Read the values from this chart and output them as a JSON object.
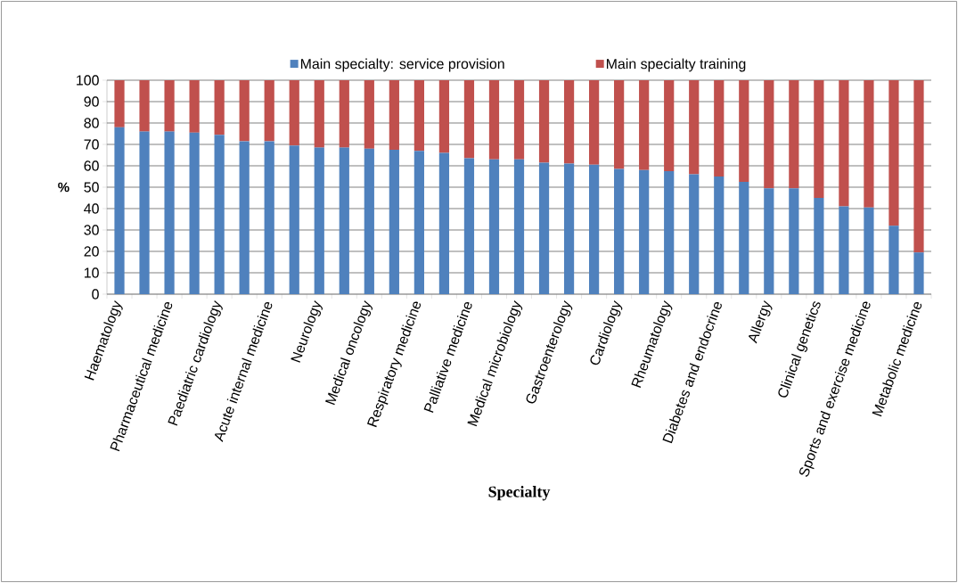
{
  "chart_data": {
    "type": "bar",
    "stacked": true,
    "xlabel": "Specialty",
    "ylabel": "%",
    "categories": [
      "Haematology",
      null,
      "Pharmaceutical medicine",
      null,
      "Paediatric cardiology",
      null,
      "Acute internal medicine",
      null,
      "Neurology",
      null,
      "Medical oncology",
      null,
      "Respiratory medicine",
      null,
      "Palliative medicine",
      null,
      "Medical microbiology",
      null,
      "Gastroenterology",
      null,
      "Cardiology",
      null,
      "Rheumatology",
      null,
      "Diabetes and endocrine",
      null,
      "Allergy",
      null,
      "Clinical genetics",
      null,
      "Sports and exercise medicine",
      null,
      "Metabolic medicine"
    ],
    "series": [
      {
        "name": "Main specialty: service provision",
        "color": "#4f81bd",
        "values": [
          78,
          76,
          76,
          75.5,
          74.5,
          71.5,
          71.5,
          69.5,
          68.5,
          68.5,
          68,
          67.5,
          67,
          66,
          63.5,
          63,
          63,
          61.5,
          61,
          60.5,
          58.5,
          58,
          57.5,
          56,
          55,
          52.5,
          49.5,
          49.5,
          45,
          41,
          40.5,
          32,
          19.5
        ]
      },
      {
        "name": "Main specialty training",
        "color": "#c0504d",
        "values": [
          22,
          24,
          24,
          24.5,
          25.5,
          28.5,
          28.5,
          30.5,
          31.5,
          31.5,
          32,
          32.5,
          33,
          34,
          36.5,
          37,
          37,
          38.5,
          39,
          39.5,
          41.5,
          42,
          42.5,
          44,
          45,
          47.5,
          50.5,
          50.5,
          55,
          59,
          59.5,
          68,
          80.5
        ]
      }
    ],
    "ylim": [
      0,
      100
    ],
    "yticks": [
      0,
      10,
      20,
      30,
      40,
      50,
      60,
      70,
      80,
      90,
      100
    ],
    "grid": "y",
    "legend": "top"
  }
}
